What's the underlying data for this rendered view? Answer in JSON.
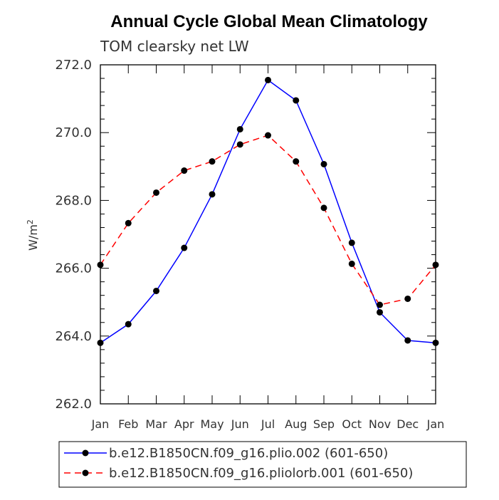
{
  "chart_data": {
    "type": "line",
    "title": "Annual Cycle Global Mean Climatology",
    "subtitle": "TOM clearsky net LW",
    "xlabel": "",
    "ylabel": "W/m",
    "ylabel_superscript": "2",
    "categories": [
      "Jan",
      "Feb",
      "Mar",
      "Apr",
      "May",
      "Jun",
      "Jul",
      "Aug",
      "Sep",
      "Oct",
      "Nov",
      "Dec",
      "Jan"
    ],
    "ylim": [
      262.0,
      272.0
    ],
    "yticks": [
      262.0,
      264.0,
      266.0,
      268.0,
      270.0,
      272.0
    ],
    "ytick_labels": [
      "262.0",
      "264.0",
      "266.0",
      "268.0",
      "270.0",
      "272.0"
    ],
    "grid": false,
    "legend_position": "bottom",
    "series": [
      {
        "name": "b.e12.B1850CN.f09_g16.plio.002 (601-650)",
        "color": "#0000ff",
        "line_style": "solid",
        "marker": "filled-circle",
        "values": [
          263.8,
          264.35,
          265.33,
          266.6,
          268.18,
          270.1,
          271.55,
          270.95,
          269.07,
          266.75,
          264.7,
          263.87,
          263.8
        ]
      },
      {
        "name": "b.e12.B1850CN.f09_g16.pliolorb.001 (601-650)",
        "color": "#ff0000",
        "line_style": "dashed",
        "marker": "filled-circle",
        "values": [
          266.1,
          267.33,
          268.23,
          268.88,
          269.15,
          269.65,
          269.92,
          269.15,
          267.78,
          266.13,
          264.92,
          265.1,
          266.1
        ]
      }
    ]
  }
}
